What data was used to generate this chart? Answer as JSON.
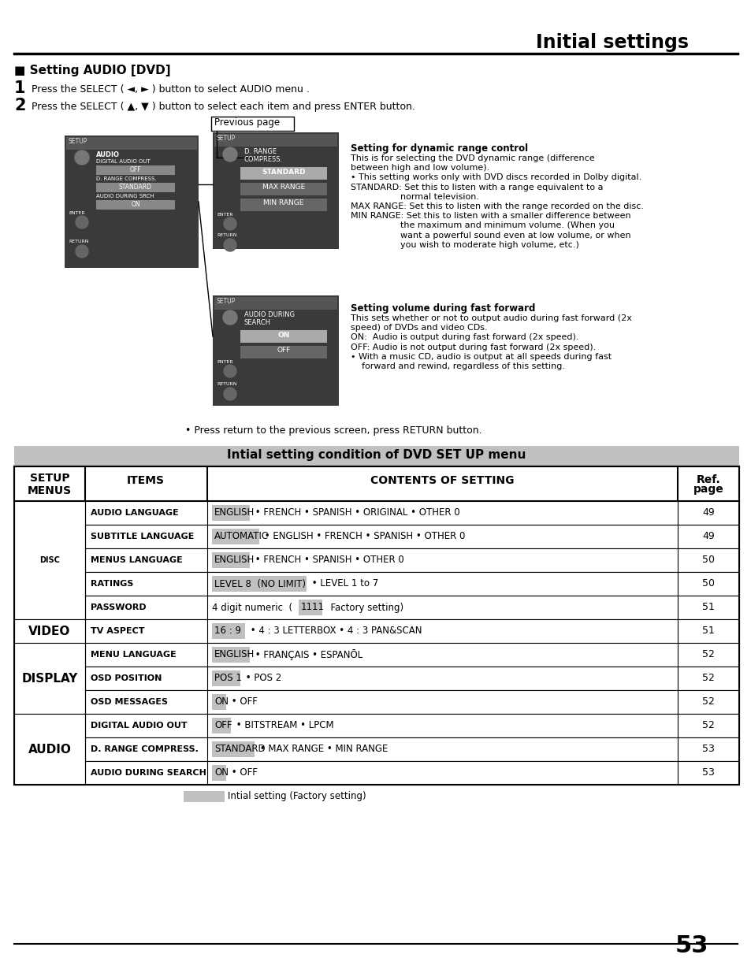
{
  "title": "Initial settings",
  "page_number": "53",
  "section_title": "Setting AUDIO [DVD]",
  "step1": "Press the SELECT ( ◄, ► ) button to select AUDIO menu .",
  "step2": "Press the SELECT ( ▲, ▼ ) button to select each item and press ENTER button.",
  "previous_page_label": "Previous page",
  "dynamic_range_title": "Setting for dynamic range control",
  "dynamic_range_body": [
    "This is for selecting the DVD dynamic range (difference",
    "between high and low volume).",
    "• This setting works only with DVD discs recorded in Dolby digital.",
    "STANDARD: Set this to listen with a range equivalent to a",
    "                  normal television.",
    "MAX RANGE: Set this to listen with the range recorded on the disc.",
    "MIN RANGE: Set this to listen with a smaller difference between",
    "                  the maximum and minimum volume. (When you",
    "                  want a powerful sound even at low volume, or when",
    "                  you wish to moderate high volume, etc.)"
  ],
  "fast_forward_title": "Setting volume during fast forward",
  "fast_forward_body": [
    "This sets whether or not to output audio during fast forward (2x",
    "speed) of DVDs and video CDs.",
    "ON:  Audio is output during fast forward (2x speed).",
    "OFF: Audio is not output during fast forward (2x speed).",
    "• With a music CD, audio is output at all speeds during fast",
    "    forward and rewind, regardless of this setting."
  ],
  "press_return_note": "• Press return to the previous screen, press RETURN button.",
  "table_banner": "Intial setting condition of DVD SET UP menu",
  "col1_header": "SETUP\nMENUS",
  "col2_header": "ITEMS",
  "col3_header": "CONTENTS OF SETTING",
  "col4_header": "Ref.\npage",
  "table_rows": [
    {
      "menu": "DISC",
      "item": "AUDIO LANGUAGE",
      "hl": "ENGLISH",
      "rest": " • FRENCH • SPANISH • ORIGINAL • OTHER 0",
      "page": "49"
    },
    {
      "menu": "",
      "item": "SUBTITLE LANGUAGE",
      "hl": "AUTOMATIC",
      "rest": " • ENGLISH • FRENCH • SPANISH • OTHER 0",
      "page": "49"
    },
    {
      "menu": "",
      "item": "MENUS LANGUAGE",
      "hl": "ENGLISH",
      "rest": " • FRENCH • SPANISH • OTHER 0",
      "page": "50"
    },
    {
      "menu": "",
      "item": "RATINGS",
      "hl": "LEVEL 8  (NO LIMIT)",
      "rest": " • LEVEL 1 to 7",
      "page": "50"
    },
    {
      "menu": "",
      "item": "PASSWORD",
      "hl": "1111",
      "rest_before": "4 digit numeric  ( ",
      "rest_after": "  Factory setting)",
      "page": "51"
    },
    {
      "menu": "VIDEO",
      "item": "TV ASPECT",
      "hl": "16 : 9",
      "rest": " • 4 : 3 LETTERBOX • 4 : 3 PAN&SCAN",
      "page": "51"
    },
    {
      "menu": "DISPLAY",
      "item": "MENU LANGUAGE",
      "hl": "ENGLISH",
      "rest": " • FRANÇAIS • ESPANŌL",
      "page": "52"
    },
    {
      "menu": "",
      "item": "OSD POSITION",
      "hl": "POS 1",
      "rest": " • POS 2",
      "page": "52"
    },
    {
      "menu": "",
      "item": "OSD MESSAGES",
      "hl": "ON",
      "rest": " • OFF",
      "page": "52"
    },
    {
      "menu": "AUDIO",
      "item": "DIGITAL AUDIO OUT",
      "hl": "OFF",
      "rest": " • BITSTREAM • LPCM",
      "page": "52"
    },
    {
      "menu": "",
      "item": "D. RANGE COMPRESS.",
      "hl": "STANDARD",
      "rest": " • MAX RANGE • MIN RANGE",
      "page": "53"
    },
    {
      "menu": "",
      "item": "AUDIO DURING SEARCH",
      "hl": "ON",
      "rest": " • OFF",
      "page": "53"
    }
  ],
  "legend_label": "Intial setting (Factory setting)",
  "highlight_color": "#c0c0c0",
  "bg_color": "#ffffff"
}
